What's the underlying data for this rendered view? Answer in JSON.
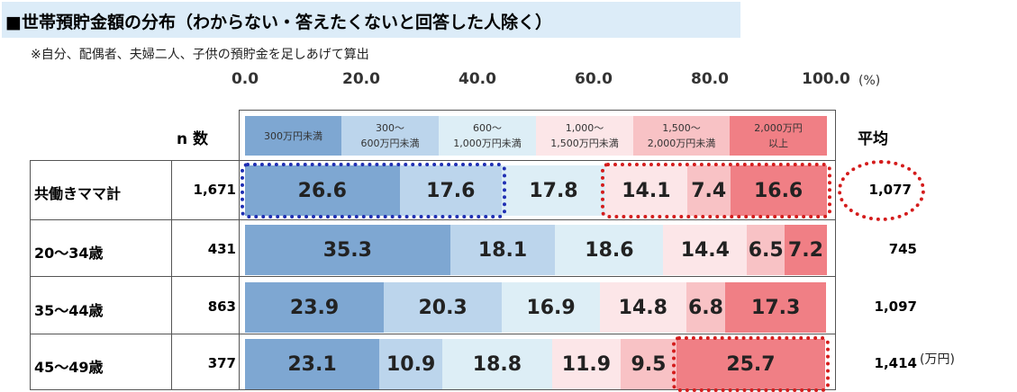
{
  "title": "■世帯預貯金額の分布（わからない・答えたくないと回答した人除く）",
  "subtitle": "※自分、配偶者、夫婦二人、子供の預貯金を足しあげて算出",
  "axis": {
    "ticks": [
      "0.0",
      "20.0",
      "40.0",
      "60.0",
      "80.0",
      "100.0"
    ],
    "unit": "(%)"
  },
  "headers": {
    "n": "n 数",
    "avg": "平均"
  },
  "unit_note": "(万円)",
  "legend": [
    {
      "line1": "300万円未満",
      "line2": "",
      "color": "#7ea7d2"
    },
    {
      "line1": "300～",
      "line2": "600万円未満",
      "color": "#bcd5ec"
    },
    {
      "line1": "600～",
      "line2": "1,000万円未満",
      "color": "#ddeef6"
    },
    {
      "line1": "1,000～",
      "line2": "1,500万円未満",
      "color": "#fce6e8"
    },
    {
      "line1": "1,500～",
      "line2": "2,000万円未満",
      "color": "#f8c2c5"
    },
    {
      "line1": "2,000万円",
      "line2": "以上",
      "color": "#f07f85"
    }
  ],
  "rows": [
    {
      "label": "共働きママ計",
      "n": "1,671",
      "avg": "1,077"
    },
    {
      "label": "20～34歳",
      "n": "431",
      "avg": "745"
    },
    {
      "label": "35～44歳",
      "n": "863",
      "avg": "1,097"
    },
    {
      "label": "45～49歳",
      "n": "377",
      "avg": "1,414"
    }
  ],
  "chart_data": {
    "type": "bar",
    "stacked": true,
    "orientation": "horizontal",
    "title": "■世帯預貯金額の分布（わからない・答えたくないと回答した人除く）",
    "categories": [
      "共働きママ計",
      "20～34歳",
      "35～44歳",
      "45～49歳"
    ],
    "xlim": [
      0,
      100
    ],
    "xunit": "(%)",
    "series": [
      {
        "name": "300万円未満",
        "values": [
          26.6,
          35.3,
          23.9,
          23.1
        ]
      },
      {
        "name": "300～600万円未満",
        "values": [
          17.6,
          18.1,
          20.3,
          10.9
        ]
      },
      {
        "name": "600～1,000万円未満",
        "values": [
          17.8,
          18.6,
          16.9,
          18.8
        ]
      },
      {
        "name": "1,000～1,500万円未満",
        "values": [
          14.1,
          14.4,
          14.8,
          11.9
        ]
      },
      {
        "name": "1,500～2,000万円未満",
        "values": [
          7.4,
          6.5,
          6.8,
          9.5
        ]
      },
      {
        "name": "2,000万円以上",
        "values": [
          16.6,
          7.2,
          17.3,
          25.7
        ]
      }
    ],
    "labels": [
      [
        "26.6",
        "17.6",
        "17.8",
        "14.1",
        "7.4",
        "16.6"
      ],
      [
        "35.3",
        "18.1",
        "18.6",
        "14.4",
        "6.5",
        "7.2"
      ],
      [
        "23.9",
        "20.3",
        "16.9",
        "14.8",
        "6.8",
        "17.3"
      ],
      [
        "23.1",
        "10.9",
        "18.8",
        "11.9",
        "9.5",
        "25.7"
      ]
    ],
    "highlights": [
      {
        "row": 0,
        "series": [
          0,
          1
        ],
        "color": "#1f2fb3"
      },
      {
        "row": 0,
        "series": [
          3,
          4,
          5
        ],
        "color": "#d41c1c"
      },
      {
        "row": 0,
        "target": "avg",
        "color": "#d41c1c"
      },
      {
        "row": 3,
        "series": [
          5
        ],
        "color": "#d41c1c"
      }
    ]
  }
}
